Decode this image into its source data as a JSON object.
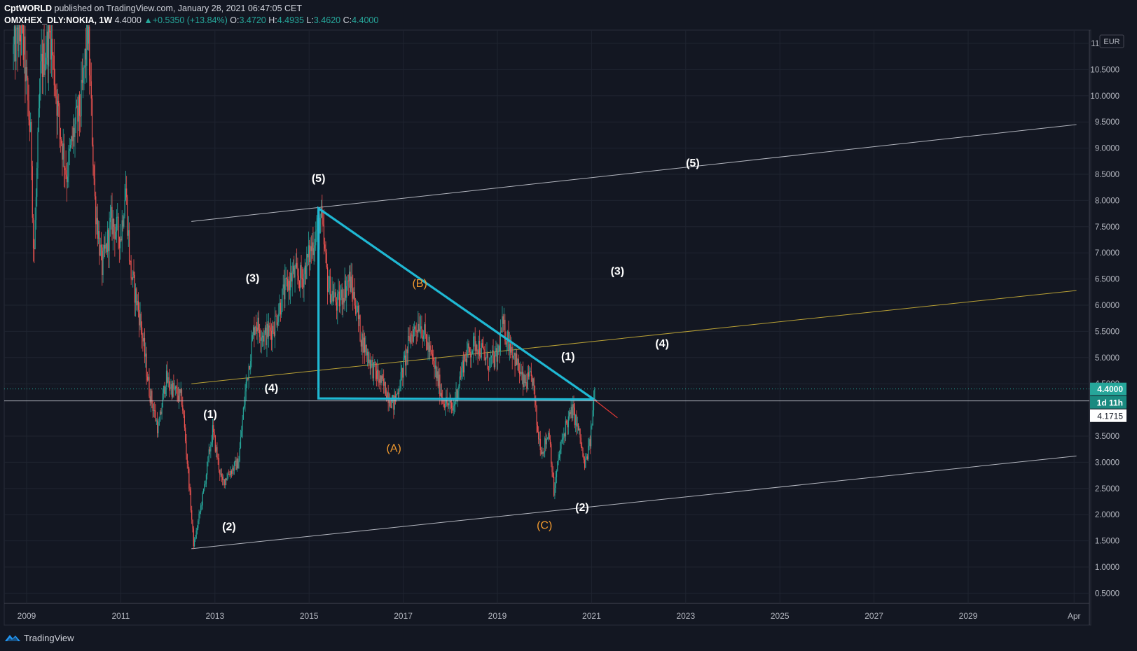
{
  "header": {
    "author": "CptWORLD",
    "published": "published on TradingView.com, January 28, 2021 06:47:05 CET",
    "symbol": "OMXHEX_DLY:NOKIA, 1W",
    "last": "4.4000",
    "change_arrow": "▲",
    "change": "+0.5350 (+13.84%)",
    "o_label": "O:",
    "o": "3.4720",
    "h_label": "H:",
    "h": "4.4935",
    "l_label": "L:",
    "l": "3.4620",
    "c_label": "C:",
    "c": "4.4000"
  },
  "footer": {
    "brand": "TradingView",
    "logo_icon": "tradingview-logo-icon"
  },
  "colors": {
    "background": "#131722",
    "grid": "#1f2430",
    "up": "#26a69a",
    "down": "#ef5350",
    "triangle": "#1fb8d3",
    "channel": "#b2b5be",
    "midline": "#b8a035",
    "wave_white": "#ffffff",
    "wave_orange": "#f29a2e"
  },
  "chart_data": {
    "type": "candlestick",
    "currency": "EUR",
    "x_ticks": [
      "2009",
      "2011",
      "2013",
      "2015",
      "2017",
      "2019",
      "2021",
      "2023",
      "2025",
      "2027",
      "2029",
      "Apr"
    ],
    "y_ticks": [
      "0.5000",
      "1.0000",
      "1.5000",
      "2.0000",
      "2.5000",
      "3.0000",
      "3.5000",
      "4.5000",
      "5.0000",
      "5.5000",
      "6.0000",
      "6.5000",
      "7.0000",
      "7.5000",
      "8.0000",
      "8.5000",
      "9.0000",
      "9.5000",
      "10.0000",
      "10.5000",
      "11.0000"
    ],
    "ylim": [
      0.3,
      11.3
    ],
    "price_label": "4.4000",
    "countdown_label": "1d 11h",
    "crosshair_label": "4.1715",
    "crosshair_price": 4.1715,
    "last_price": 4.4,
    "price_path": [
      [
        2008.7,
        10.8
      ],
      [
        2008.9,
        11.3
      ],
      [
        2009.1,
        9.0
      ],
      [
        2009.15,
        6.8
      ],
      [
        2009.3,
        10.5
      ],
      [
        2009.5,
        11.2
      ],
      [
        2009.7,
        9.4
      ],
      [
        2009.85,
        8.5
      ],
      [
        2010.0,
        9.3
      ],
      [
        2010.15,
        9.8
      ],
      [
        2010.3,
        11.3
      ],
      [
        2010.45,
        8.0
      ],
      [
        2010.6,
        6.7
      ],
      [
        2010.8,
        7.6
      ],
      [
        2011.0,
        7.3
      ],
      [
        2011.1,
        8.3
      ],
      [
        2011.2,
        6.7
      ],
      [
        2011.4,
        5.8
      ],
      [
        2011.6,
        4.4
      ],
      [
        2011.8,
        3.6
      ],
      [
        2011.95,
        4.6
      ],
      [
        2012.1,
        4.4
      ],
      [
        2012.3,
        4.2
      ],
      [
        2012.45,
        2.6
      ],
      [
        2012.55,
        1.4
      ],
      [
        2012.75,
        2.4
      ],
      [
        2012.95,
        3.6
      ],
      [
        2013.15,
        2.6
      ],
      [
        2013.3,
        2.8
      ],
      [
        2013.5,
        3.0
      ],
      [
        2013.65,
        4.4
      ],
      [
        2013.85,
        5.7
      ],
      [
        2014.05,
        5.4
      ],
      [
        2014.25,
        5.6
      ],
      [
        2014.45,
        6.2
      ],
      [
        2014.65,
        6.6
      ],
      [
        2014.85,
        6.5
      ],
      [
        2015.05,
        7.1
      ],
      [
        2015.25,
        7.7
      ],
      [
        2015.4,
        6.4
      ],
      [
        2015.6,
        6.0
      ],
      [
        2015.85,
        6.5
      ],
      [
        2016.0,
        6.0
      ],
      [
        2016.1,
        5.4
      ],
      [
        2016.35,
        4.8
      ],
      [
        2016.55,
        4.5
      ],
      [
        2016.8,
        4.1
      ],
      [
        2016.95,
        4.6
      ],
      [
        2017.15,
        5.4
      ],
      [
        2017.35,
        5.7
      ],
      [
        2017.6,
        5.0
      ],
      [
        2017.85,
        4.2
      ],
      [
        2018.05,
        4.0
      ],
      [
        2018.3,
        5.0
      ],
      [
        2018.55,
        5.3
      ],
      [
        2018.8,
        4.9
      ],
      [
        2019.0,
        5.0
      ],
      [
        2019.1,
        5.6
      ],
      [
        2019.3,
        5.2
      ],
      [
        2019.55,
        4.5
      ],
      [
        2019.75,
        4.6
      ],
      [
        2019.85,
        3.6
      ],
      [
        2019.95,
        3.2
      ],
      [
        2020.1,
        3.6
      ],
      [
        2020.2,
        2.4
      ],
      [
        2020.3,
        3.1
      ],
      [
        2020.45,
        3.7
      ],
      [
        2020.6,
        4.0
      ],
      [
        2020.75,
        3.5
      ],
      [
        2020.85,
        2.9
      ],
      [
        2020.97,
        3.4
      ],
      [
        2021.07,
        4.4
      ]
    ],
    "annotations": {
      "triangle": [
        [
          2015.2,
          7.85
        ],
        [
          2021.05,
          4.2
        ],
        [
          2015.2,
          4.22
        ]
      ],
      "red_extension": [
        [
          2021.05,
          4.2
        ],
        [
          2021.55,
          3.85
        ]
      ],
      "channel_upper": [
        [
          2012.5,
          7.6
        ],
        [
          2031.3,
          9.45
        ]
      ],
      "channel_lower": [
        [
          2012.5,
          1.35
        ],
        [
          2031.3,
          3.12
        ]
      ],
      "channel_mid": [
        [
          2012.5,
          4.5
        ],
        [
          2031.3,
          6.28
        ]
      ]
    },
    "wave_labels": [
      {
        "text": "(5)",
        "x": 2015.2,
        "y": 8.35,
        "color": "white"
      },
      {
        "text": "(3)",
        "x": 2013.8,
        "y": 6.45,
        "color": "white"
      },
      {
        "text": "(4)",
        "x": 2014.2,
        "y": 4.35,
        "color": "white"
      },
      {
        "text": "(1)",
        "x": 2012.9,
        "y": 3.85,
        "color": "white"
      },
      {
        "text": "(2)",
        "x": 2013.3,
        "y": 1.7,
        "color": "white"
      },
      {
        "text": "(B)",
        "x": 2017.35,
        "y": 6.35,
        "color": "orange"
      },
      {
        "text": "(A)",
        "x": 2016.8,
        "y": 3.2,
        "color": "orange"
      },
      {
        "text": "(C)",
        "x": 2020.0,
        "y": 1.73,
        "color": "orange"
      },
      {
        "text": "(1)",
        "x": 2020.5,
        "y": 4.95,
        "color": "white"
      },
      {
        "text": "(2)",
        "x": 2020.8,
        "y": 2.07,
        "color": "white"
      },
      {
        "text": "(3)",
        "x": 2021.55,
        "y": 6.58,
        "color": "white"
      },
      {
        "text": "(4)",
        "x": 2022.5,
        "y": 5.2,
        "color": "white"
      },
      {
        "text": "(5)",
        "x": 2023.15,
        "y": 8.65,
        "color": "white"
      }
    ]
  }
}
